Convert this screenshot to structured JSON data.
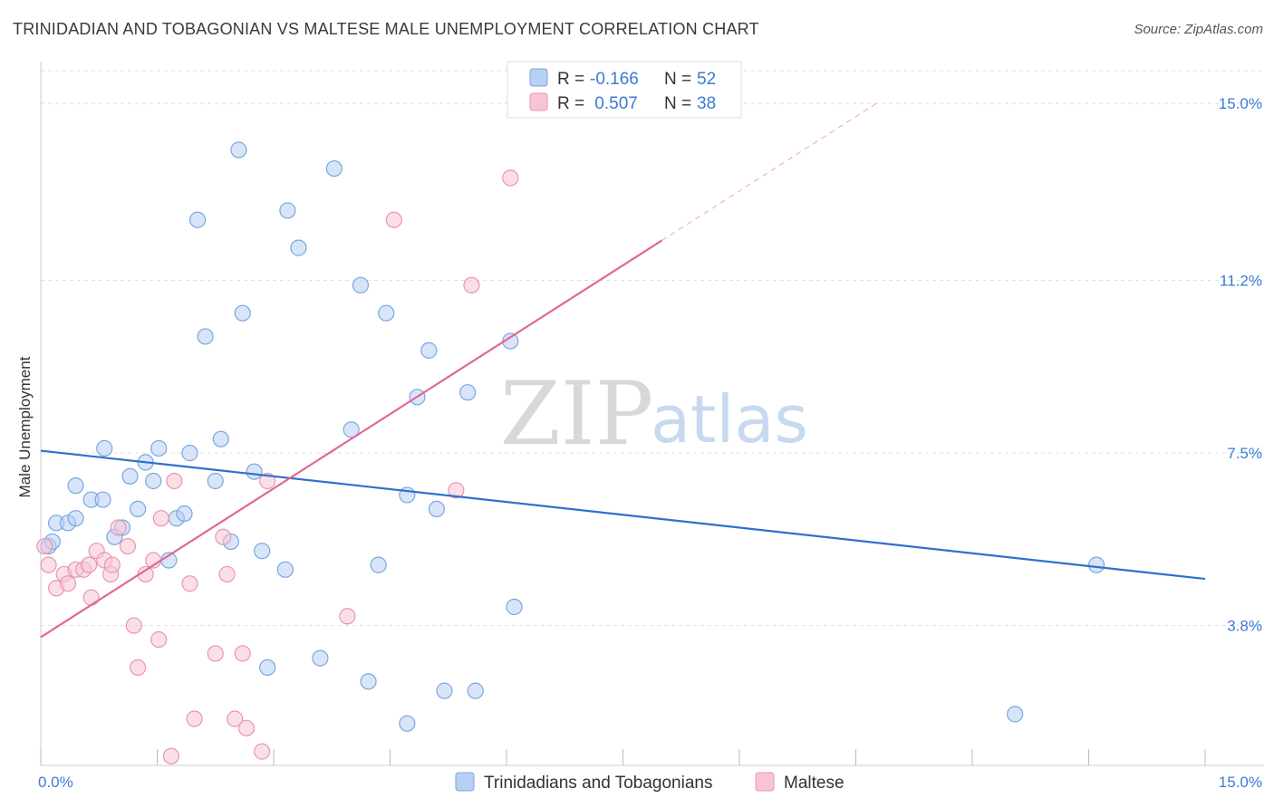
{
  "title": "TRINIDADIAN AND TOBAGONIAN VS MALTESE MALE UNEMPLOYMENT CORRELATION CHART",
  "source": "Source: ZipAtlas.com",
  "watermark": {
    "zip": "ZIP",
    "atlas": "atlas"
  },
  "colors": {
    "blue_fill": "#b8d0f2",
    "blue_stroke": "#7aa6e0",
    "blue_line": "#2f6fcf",
    "pink_fill": "#f8c4d4",
    "pink_stroke": "#e995b1",
    "pink_line": "#e06892",
    "grid": "#dddddd",
    "tick": "#3a7bd5"
  },
  "legend": {
    "series1": {
      "r_label": "R =",
      "r_value": "-0.166",
      "n_label": "N =",
      "n_value": "52"
    },
    "series2": {
      "r_label": "R =",
      "r_value": " 0.507",
      "n_label": "N =",
      "n_value": "38"
    }
  },
  "chart_data": {
    "type": "scatter",
    "title": "TRINIDADIAN AND TOBAGONIAN VS MALTESE MALE UNEMPLOYMENT CORRELATION CHART",
    "xlabel": "",
    "ylabel": "Male Unemployment",
    "xlim": [
      0,
      15
    ],
    "ylim": [
      0.8,
      15.7
    ],
    "x_tick_labels": [
      "0.0%",
      "15.0%"
    ],
    "y_ticks": [
      {
        "value": 3.8,
        "label": "3.8%"
      },
      {
        "value": 7.5,
        "label": "7.5%"
      },
      {
        "value": 11.2,
        "label": "11.2%"
      },
      {
        "value": 15.0,
        "label": "15.0%"
      }
    ],
    "series": [
      {
        "name": "Trinidadians and Tobagonians",
        "color": "#b8d0f2",
        "trend": {
          "x0": 0.0,
          "y0": 7.55,
          "x1": 15.0,
          "y1": 4.8,
          "solid_until": 15.0
        },
        "points": [
          [
            0.1,
            5.5
          ],
          [
            0.15,
            5.6
          ],
          [
            0.2,
            6.0
          ],
          [
            0.35,
            6.0
          ],
          [
            0.45,
            6.1
          ],
          [
            0.45,
            6.8
          ],
          [
            0.65,
            6.5
          ],
          [
            0.8,
            6.5
          ],
          [
            0.82,
            7.6
          ],
          [
            0.95,
            5.7
          ],
          [
            1.05,
            5.9
          ],
          [
            1.15,
            7.0
          ],
          [
            1.25,
            6.3
          ],
          [
            1.35,
            7.3
          ],
          [
            1.45,
            6.9
          ],
          [
            1.52,
            7.6
          ],
          [
            1.65,
            5.2
          ],
          [
            1.75,
            6.1
          ],
          [
            1.85,
            6.2
          ],
          [
            1.92,
            7.5
          ],
          [
            2.02,
            12.5
          ],
          [
            2.12,
            10.0
          ],
          [
            2.25,
            6.9
          ],
          [
            2.32,
            7.8
          ],
          [
            2.45,
            5.6
          ],
          [
            2.55,
            14.0
          ],
          [
            2.6,
            10.5
          ],
          [
            2.75,
            7.1
          ],
          [
            2.85,
            5.4
          ],
          [
            2.92,
            2.9
          ],
          [
            3.15,
            5.0
          ],
          [
            3.18,
            12.7
          ],
          [
            3.32,
            11.9
          ],
          [
            3.6,
            3.1
          ],
          [
            3.78,
            13.6
          ],
          [
            4.0,
            8.0
          ],
          [
            4.12,
            11.1
          ],
          [
            4.22,
            2.6
          ],
          [
            4.35,
            5.1
          ],
          [
            4.45,
            10.5
          ],
          [
            4.72,
            6.6
          ],
          [
            4.72,
            1.7
          ],
          [
            4.85,
            8.7
          ],
          [
            5.0,
            9.7
          ],
          [
            5.1,
            6.3
          ],
          [
            5.2,
            2.4
          ],
          [
            5.5,
            8.8
          ],
          [
            5.6,
            2.4
          ],
          [
            6.1,
            4.2
          ],
          [
            6.05,
            9.9
          ],
          [
            12.55,
            1.9
          ],
          [
            13.6,
            5.1
          ]
        ]
      },
      {
        "name": "Maltese",
        "color": "#f8c4d4",
        "trend": {
          "x0": 0.0,
          "y0": 3.55,
          "x1": 15.0,
          "y1": 19.5,
          "solid_until": 8.0
        },
        "points": [
          [
            0.1,
            5.1
          ],
          [
            0.2,
            4.6
          ],
          [
            0.3,
            4.9
          ],
          [
            0.35,
            4.7
          ],
          [
            0.45,
            5.0
          ],
          [
            0.55,
            5.0
          ],
          [
            0.62,
            5.1
          ],
          [
            0.65,
            4.4
          ],
          [
            0.72,
            5.4
          ],
          [
            0.82,
            5.2
          ],
          [
            0.9,
            4.9
          ],
          [
            0.92,
            5.1
          ],
          [
            1.0,
            5.9
          ],
          [
            1.12,
            5.5
          ],
          [
            1.2,
            3.8
          ],
          [
            1.25,
            2.9
          ],
          [
            1.35,
            4.9
          ],
          [
            1.45,
            5.2
          ],
          [
            1.52,
            3.5
          ],
          [
            1.55,
            6.1
          ],
          [
            1.68,
            1.0
          ],
          [
            1.72,
            6.9
          ],
          [
            1.92,
            4.7
          ],
          [
            1.98,
            1.8
          ],
          [
            2.25,
            3.2
          ],
          [
            2.35,
            5.7
          ],
          [
            2.4,
            4.9
          ],
          [
            2.5,
            1.8
          ],
          [
            2.6,
            3.2
          ],
          [
            2.65,
            1.6
          ],
          [
            2.85,
            1.1
          ],
          [
            2.92,
            6.9
          ],
          [
            3.95,
            4.0
          ],
          [
            4.55,
            12.5
          ],
          [
            5.35,
            6.7
          ],
          [
            5.55,
            11.1
          ],
          [
            6.05,
            13.4
          ],
          [
            0.05,
            5.5
          ]
        ]
      }
    ]
  },
  "bottom_legend": [
    {
      "label": "Trinidadians and Tobagonians"
    },
    {
      "label": "Maltese"
    }
  ]
}
